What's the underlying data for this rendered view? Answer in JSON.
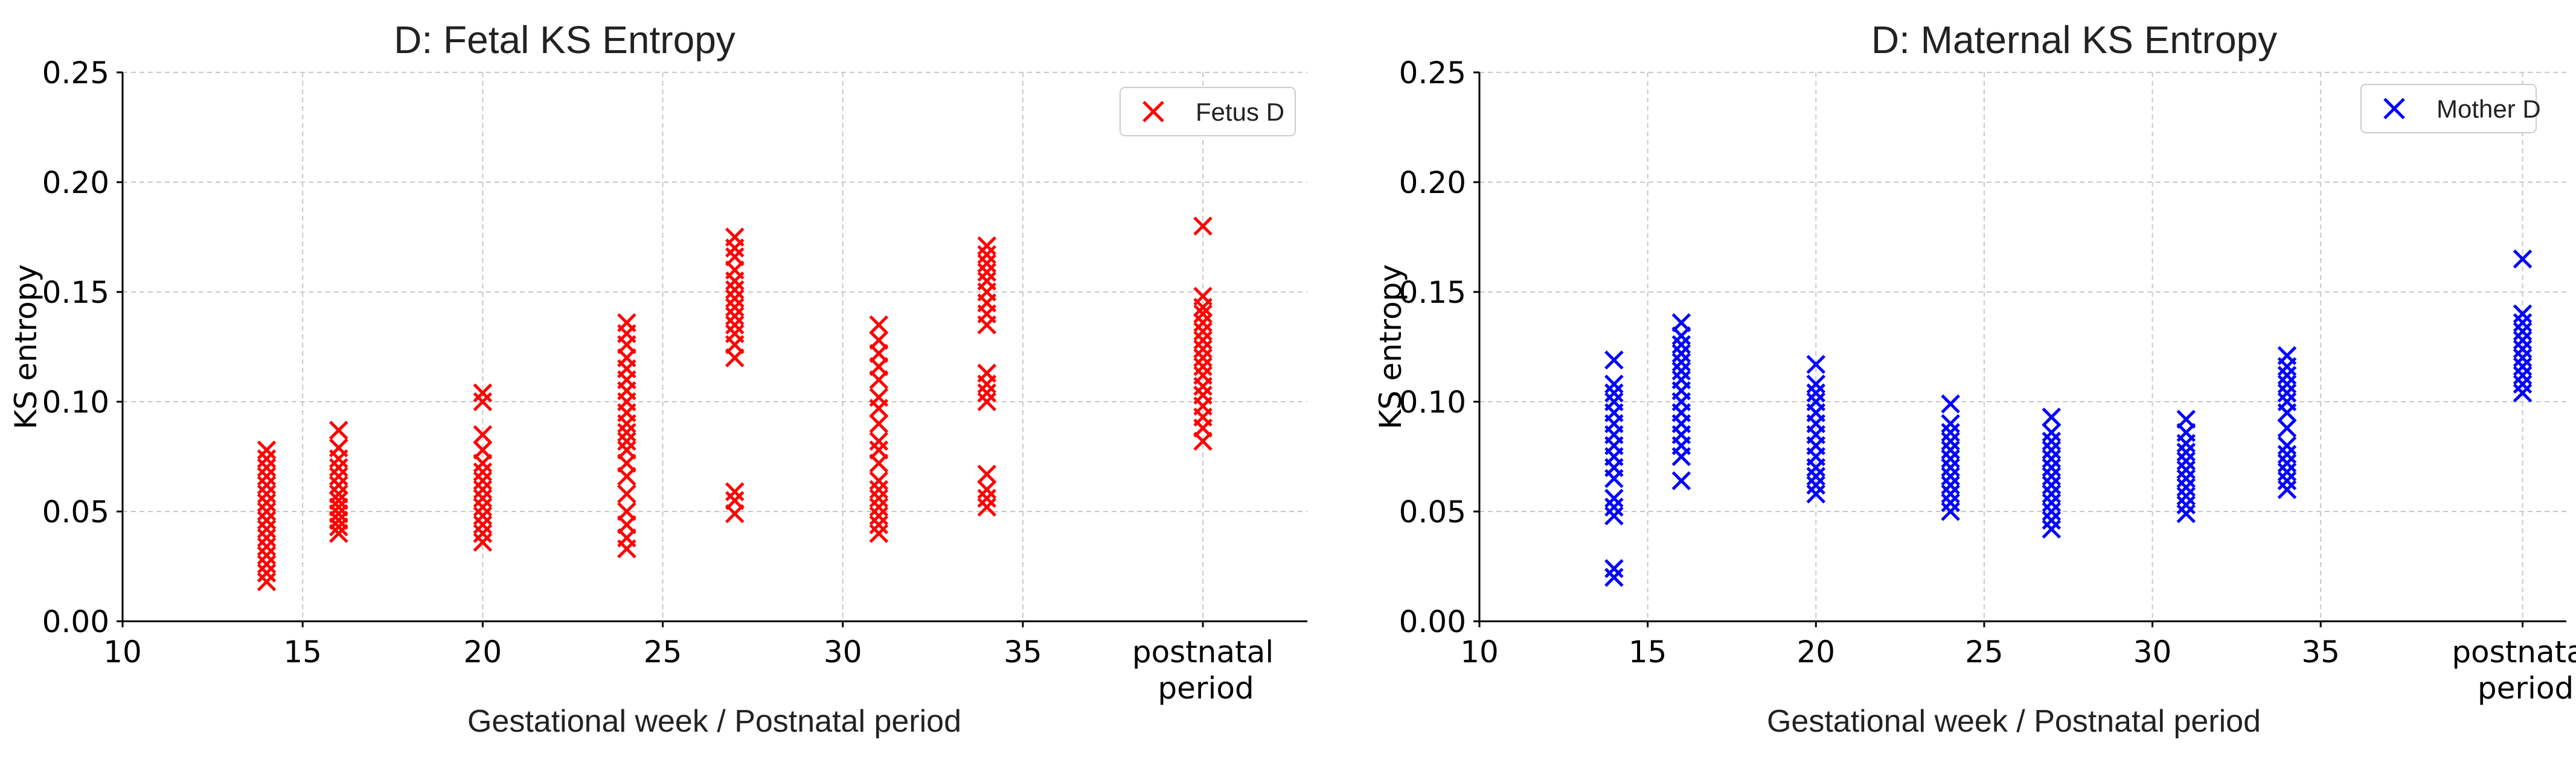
{
  "chart_data": [
    {
      "type": "scatter",
      "title": "D: Fetal KS Entropy",
      "xlabel": "Gestational week / Postnatal period",
      "ylabel": "KS entropy",
      "xlim": [
        10,
        42
      ],
      "ylim": [
        0,
        0.25
      ],
      "grid": true,
      "legend_position": "top-right",
      "x_ticks": [
        {
          "value": 10,
          "label": "10"
        },
        {
          "value": 15,
          "label": "15"
        },
        {
          "value": 20,
          "label": "20"
        },
        {
          "value": 25,
          "label": "25"
        },
        {
          "value": 30,
          "label": "30"
        },
        {
          "value": 35,
          "label": "35"
        },
        {
          "value": 40,
          "label": "postnatal\nperiod"
        }
      ],
      "y_ticks": [
        {
          "value": 0,
          "label": "0.00"
        },
        {
          "value": 0.05,
          "label": "0.05"
        },
        {
          "value": 0.1,
          "label": "0.10"
        },
        {
          "value": 0.15,
          "label": "0.15"
        },
        {
          "value": 0.2,
          "label": "0.20"
        },
        {
          "value": 0.25,
          "label": "0.25"
        }
      ],
      "series": [
        {
          "name": "Fetus D",
          "color": "#ff0000",
          "marker": "x",
          "points": [
            {
              "x": 14,
              "values": [
                0.018,
                0.022,
                0.026,
                0.03,
                0.034,
                0.038,
                0.042,
                0.046,
                0.05,
                0.054,
                0.058,
                0.062,
                0.066,
                0.07,
                0.074,
                0.078
              ]
            },
            {
              "x": 16,
              "values": [
                0.04,
                0.043,
                0.046,
                0.049,
                0.052,
                0.055,
                0.058,
                0.062,
                0.066,
                0.07,
                0.074,
                0.079,
                0.087
              ]
            },
            {
              "x": 20,
              "values": [
                0.036,
                0.04,
                0.044,
                0.048,
                0.052,
                0.056,
                0.06,
                0.064,
                0.068,
                0.072,
                0.078,
                0.085,
                0.1,
                0.104
              ]
            },
            {
              "x": 24,
              "values": [
                0.033,
                0.038,
                0.044,
                0.05,
                0.058,
                0.066,
                0.072,
                0.078,
                0.082,
                0.086,
                0.09,
                0.095,
                0.1,
                0.105,
                0.11,
                0.115,
                0.12,
                0.126,
                0.131,
                0.136
              ]
            },
            {
              "x": 27,
              "values": [
                0.049,
                0.055,
                0.059,
                0.12,
                0.126,
                0.131,
                0.135,
                0.139,
                0.143,
                0.147,
                0.151,
                0.155,
                0.16,
                0.166,
                0.17,
                0.175
              ]
            },
            {
              "x": 31,
              "values": [
                0.04,
                0.044,
                0.048,
                0.052,
                0.056,
                0.06,
                0.064,
                0.072,
                0.078,
                0.082,
                0.09,
                0.097,
                0.102,
                0.11,
                0.116,
                0.122,
                0.128,
                0.135
              ]
            },
            {
              "x": 34,
              "values": [
                0.052,
                0.056,
                0.06,
                0.067,
                0.1,
                0.104,
                0.108,
                0.113,
                0.135,
                0.14,
                0.145,
                0.15,
                0.155,
                0.159,
                0.163,
                0.167,
                0.171
              ]
            },
            {
              "x": 40,
              "values": [
                0.082,
                0.088,
                0.093,
                0.098,
                0.103,
                0.107,
                0.112,
                0.116,
                0.12,
                0.124,
                0.128,
                0.132,
                0.136,
                0.14,
                0.143,
                0.148,
                0.18
              ]
            }
          ]
        }
      ]
    },
    {
      "type": "scatter",
      "title": "D: Maternal KS Entropy",
      "xlabel": "Gestational week / Postnatal period",
      "ylabel": "KS entropy",
      "xlim": [
        10,
        42
      ],
      "ylim": [
        0,
        0.25
      ],
      "grid": true,
      "legend_position": "top-right",
      "x_ticks": [
        {
          "value": 10,
          "label": "10"
        },
        {
          "value": 15,
          "label": "15"
        },
        {
          "value": 20,
          "label": "20"
        },
        {
          "value": 25,
          "label": "25"
        },
        {
          "value": 30,
          "label": "30"
        },
        {
          "value": 35,
          "label": "35"
        },
        {
          "value": 41,
          "label": "postnatal\nperiod"
        }
      ],
      "y_ticks": [
        {
          "value": 0,
          "label": "0.00"
        },
        {
          "value": 0.05,
          "label": "0.05"
        },
        {
          "value": 0.1,
          "label": "0.10"
        },
        {
          "value": 0.15,
          "label": "0.15"
        },
        {
          "value": 0.2,
          "label": "0.20"
        },
        {
          "value": 0.25,
          "label": "0.25"
        }
      ],
      "series": [
        {
          "name": "Mother D",
          "color": "#0000ff",
          "marker": "x",
          "points": [
            {
              "x": 14,
              "values": [
                0.02,
                0.024,
                0.048,
                0.052,
                0.056,
                0.065,
                0.07,
                0.075,
                0.08,
                0.085,
                0.09,
                0.095,
                0.1,
                0.104,
                0.108,
                0.119
              ]
            },
            {
              "x": 16,
              "values": [
                0.064,
                0.075,
                0.08,
                0.085,
                0.09,
                0.095,
                0.1,
                0.105,
                0.11,
                0.114,
                0.118,
                0.122,
                0.126,
                0.13,
                0.136
              ]
            },
            {
              "x": 20,
              "values": [
                0.058,
                0.062,
                0.066,
                0.07,
                0.075,
                0.08,
                0.085,
                0.09,
                0.095,
                0.1,
                0.104,
                0.108,
                0.117
              ]
            },
            {
              "x": 24,
              "values": [
                0.05,
                0.054,
                0.058,
                0.062,
                0.066,
                0.07,
                0.074,
                0.078,
                0.082,
                0.086,
                0.09,
                0.099
              ]
            },
            {
              "x": 27,
              "values": [
                0.042,
                0.046,
                0.05,
                0.054,
                0.058,
                0.062,
                0.066,
                0.07,
                0.074,
                0.078,
                0.082,
                0.086,
                0.093
              ]
            },
            {
              "x": 31,
              "values": [
                0.049,
                0.053,
                0.057,
                0.061,
                0.065,
                0.069,
                0.073,
                0.077,
                0.081,
                0.086,
                0.092
              ]
            },
            {
              "x": 34,
              "values": [
                0.06,
                0.064,
                0.068,
                0.072,
                0.076,
                0.08,
                0.088,
                0.095,
                0.1,
                0.104,
                0.108,
                0.112,
                0.116,
                0.121
              ]
            },
            {
              "x": 41,
              "values": [
                0.104,
                0.108,
                0.112,
                0.116,
                0.12,
                0.124,
                0.128,
                0.132,
                0.136,
                0.14,
                0.165
              ]
            }
          ]
        }
      ]
    }
  ]
}
